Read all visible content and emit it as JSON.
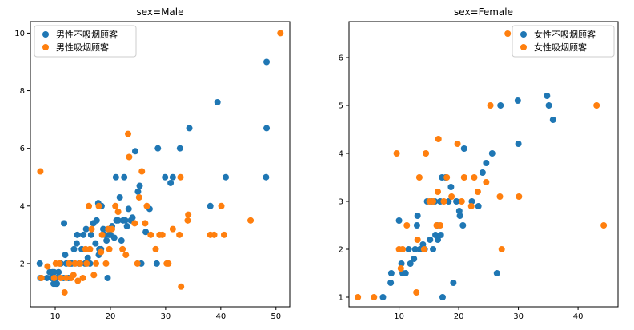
{
  "colors": {
    "non_smoker": "#1f77b4",
    "smoker": "#ff7f0e",
    "axis": "#000000",
    "background": "#ffffff"
  },
  "chart_data": [
    {
      "type": "scatter",
      "title": "sex=Male",
      "xlabel": "",
      "ylabel": "",
      "xlim": [
        5.5,
        52.5
      ],
      "ylim": [
        0.5,
        10.4
      ],
      "xticks": [
        10,
        20,
        30,
        40,
        50
      ],
      "yticks": [
        2,
        4,
        6,
        8,
        10
      ],
      "grid": false,
      "legend_position": "top-left",
      "series": [
        {
          "name": "男性不吸烟顾客",
          "color": "#1f77b4",
          "points": [
            [
              7.2,
              2
            ],
            [
              7.3,
              1.5
            ],
            [
              8.5,
              1.5
            ],
            [
              9,
              1.7
            ],
            [
              9.3,
              1.5
            ],
            [
              9.5,
              1.7
            ],
            [
              9.7,
              1.3
            ],
            [
              9.8,
              1.7
            ],
            [
              10,
              1.3
            ],
            [
              10.2,
              1.3
            ],
            [
              10.3,
              1.5
            ],
            [
              10.6,
              1.7
            ],
            [
              10.3,
              1.3
            ],
            [
              11,
              2
            ],
            [
              11.5,
              1.5
            ],
            [
              11.6,
              3.4
            ],
            [
              11.8,
              2.3
            ],
            [
              12,
              2
            ],
            [
              12.4,
              1.5
            ],
            [
              12.7,
              2
            ],
            [
              13,
              2
            ],
            [
              13.4,
              2.5
            ],
            [
              13.9,
              2.7
            ],
            [
              14,
              3
            ],
            [
              14.3,
              2
            ],
            [
              14.8,
              2.5
            ],
            [
              15.1,
              3
            ],
            [
              15.4,
              2
            ],
            [
              15.6,
              3.2
            ],
            [
              15.9,
              2.2
            ],
            [
              16.3,
              2
            ],
            [
              16.5,
              3
            ],
            [
              16.9,
              3.4
            ],
            [
              17.3,
              2.7
            ],
            [
              17.5,
              3.5
            ],
            [
              17.8,
              4.1
            ],
            [
              17.9,
              2.3
            ],
            [
              18,
              2.5
            ],
            [
              18.3,
              2.5
            ],
            [
              18.4,
              4
            ],
            [
              18.7,
              3.2
            ],
            [
              19,
              3
            ],
            [
              19.3,
              2.8
            ],
            [
              19.5,
              1.5
            ],
            [
              19.8,
              3
            ],
            [
              20,
              3
            ],
            [
              20.3,
              3.3
            ],
            [
              20.7,
              2.9
            ],
            [
              21,
              5
            ],
            [
              21.1,
              3.5
            ],
            [
              21.4,
              3.5
            ],
            [
              21.7,
              4.3
            ],
            [
              22,
              2.8
            ],
            [
              22.3,
              3.5
            ],
            [
              22.5,
              5
            ],
            [
              22.7,
              3.5
            ],
            [
              23,
              3.3
            ],
            [
              23.3,
              3.9
            ],
            [
              23.7,
              3.5
            ],
            [
              24,
              3.6
            ],
            [
              24.5,
              5.9
            ],
            [
              25,
              4.5
            ],
            [
              25.3,
              4.7
            ],
            [
              25.6,
              2
            ],
            [
              26.4,
              3.1
            ],
            [
              27.1,
              3.9
            ],
            [
              28.4,
              2
            ],
            [
              28.6,
              6
            ],
            [
              29.9,
              5
            ],
            [
              30.9,
              4.8
            ],
            [
              31.3,
              5
            ],
            [
              32.6,
              6
            ],
            [
              34.3,
              6.7
            ],
            [
              38.1,
              4
            ],
            [
              39.4,
              7.6
            ],
            [
              40.9,
              5
            ],
            [
              48.2,
              5
            ],
            [
              48.3,
              6.7
            ],
            [
              48.3,
              9
            ]
          ]
        },
        {
          "name": "男性吸烟顾客",
          "color": "#ff7f0e",
          "points": [
            [
              7.3,
              5.2
            ],
            [
              7.5,
              1.5
            ],
            [
              8.6,
              1.9
            ],
            [
              9.8,
              1.5
            ],
            [
              10.1,
              2
            ],
            [
              10.8,
              2
            ],
            [
              11,
              1.5
            ],
            [
              11.7,
              1
            ],
            [
              12,
              1.5
            ],
            [
              12.5,
              2
            ],
            [
              12.9,
              1.5
            ],
            [
              13.3,
              1.6
            ],
            [
              13.6,
              2
            ],
            [
              14.1,
              1.4
            ],
            [
              14.5,
              2
            ],
            [
              15,
              1.5
            ],
            [
              15.5,
              2.5
            ],
            [
              15.7,
              2
            ],
            [
              16.1,
              4
            ],
            [
              16.3,
              2.5
            ],
            [
              16.6,
              3.2
            ],
            [
              17,
              1.6
            ],
            [
              17.4,
              2
            ],
            [
              17.9,
              4
            ],
            [
              18.3,
              2.4
            ],
            [
              18.5,
              3
            ],
            [
              19.2,
              2
            ],
            [
              19.6,
              3.2
            ],
            [
              19.8,
              2.5
            ],
            [
              20.3,
              3.2
            ],
            [
              20.9,
              4
            ],
            [
              21.4,
              3.8
            ],
            [
              22.2,
              2.5
            ],
            [
              22.8,
              2.3
            ],
            [
              23.2,
              6.5
            ],
            [
              23.4,
              5.7
            ],
            [
              24.4,
              3.4
            ],
            [
              24.9,
              2
            ],
            [
              25.2,
              4.3
            ],
            [
              25.7,
              5.2
            ],
            [
              26.3,
              3.4
            ],
            [
              26.6,
              4
            ],
            [
              27.3,
              3
            ],
            [
              28.2,
              2.5
            ],
            [
              28.9,
              3
            ],
            [
              29.4,
              3
            ],
            [
              30.2,
              2
            ],
            [
              30.5,
              2
            ],
            [
              31.3,
              3.2
            ],
            [
              32.5,
              3
            ],
            [
              32.7,
              5
            ],
            [
              32.8,
              1.2
            ],
            [
              34,
              3.5
            ],
            [
              34.1,
              3.7
            ],
            [
              38.1,
              3
            ],
            [
              38.8,
              3
            ],
            [
              40.1,
              4
            ],
            [
              40.6,
              3
            ],
            [
              45.4,
              3.5
            ],
            [
              50.8,
              10
            ]
          ]
        }
      ]
    },
    {
      "type": "scatter",
      "title": "sex=Female",
      "xlabel": "",
      "ylabel": "",
      "xlim": [
        1.6,
        46.7
      ],
      "ylim": [
        0.8,
        6.75
      ],
      "xticks": [
        10,
        20,
        30,
        40
      ],
      "yticks": [
        1,
        2,
        3,
        4,
        5,
        6
      ],
      "grid": false,
      "legend_position": "top-right",
      "series": [
        {
          "name": "女性不吸烟顾客",
          "color": "#1f77b4",
          "points": [
            [
              7.3,
              1
            ],
            [
              8.6,
              1.3
            ],
            [
              8.7,
              1.5
            ],
            [
              10,
              2.6
            ],
            [
              10.4,
              1.7
            ],
            [
              10.6,
              1.5
            ],
            [
              11.1,
              1.5
            ],
            [
              11.6,
              2
            ],
            [
              11.9,
              1.7
            ],
            [
              12.5,
              1.8
            ],
            [
              12.7,
              2
            ],
            [
              13,
              2.5
            ],
            [
              13.1,
              2.7
            ],
            [
              13.5,
              2
            ],
            [
              13.9,
              2
            ],
            [
              14,
              2.1
            ],
            [
              14.3,
              2
            ],
            [
              14.7,
              3
            ],
            [
              15.2,
              2.2
            ],
            [
              15.4,
              3
            ],
            [
              15.7,
              2
            ],
            [
              16,
              3
            ],
            [
              16.1,
              2.3
            ],
            [
              16.4,
              2.5
            ],
            [
              16.5,
              2.2
            ],
            [
              16.9,
              3
            ],
            [
              17,
              2.3
            ],
            [
              17.2,
              3.5
            ],
            [
              17.3,
              1
            ],
            [
              17.8,
              3.5
            ],
            [
              18.3,
              3
            ],
            [
              18.7,
              3.3
            ],
            [
              19.1,
              1.3
            ],
            [
              19.6,
              3
            ],
            [
              20.1,
              2.8
            ],
            [
              20.2,
              2.7
            ],
            [
              20.7,
              2.5
            ],
            [
              20.9,
              4.1
            ],
            [
              22.2,
              3
            ],
            [
              23.3,
              2.9
            ],
            [
              24,
              3.6
            ],
            [
              24.6,
              3.8
            ],
            [
              25.6,
              4
            ],
            [
              26.4,
              1.5
            ],
            [
              27,
              5
            ],
            [
              29.9,
              5.1
            ],
            [
              30,
              4.2
            ],
            [
              34.8,
              5.2
            ],
            [
              35.1,
              5
            ],
            [
              35.8,
              4.7
            ]
          ]
        },
        {
          "name": "女性吸烟顾客",
          "color": "#ff7f0e",
          "points": [
            [
              3.1,
              1
            ],
            [
              5.8,
              1
            ],
            [
              9.6,
              4
            ],
            [
              10,
              2
            ],
            [
              10.3,
              1.6
            ],
            [
              10.6,
              2
            ],
            [
              11.3,
              2.5
            ],
            [
              12.9,
              1.1
            ],
            [
              13.1,
              2.2
            ],
            [
              13.4,
              3.5
            ],
            [
              14.2,
              2
            ],
            [
              14.5,
              4
            ],
            [
              15.1,
              3
            ],
            [
              15.7,
              3
            ],
            [
              16.3,
              2.5
            ],
            [
              16.5,
              3.2
            ],
            [
              16.6,
              4.3
            ],
            [
              16.9,
              2.5
            ],
            [
              17.5,
              3
            ],
            [
              18,
              3.5
            ],
            [
              18.8,
              3.1
            ],
            [
              19.8,
              4.2
            ],
            [
              20.5,
              3
            ],
            [
              20.9,
              3.5
            ],
            [
              22.1,
              2.9
            ],
            [
              22.6,
              3.5
            ],
            [
              23.2,
              3.2
            ],
            [
              24.6,
              3.4
            ],
            [
              25.3,
              5
            ],
            [
              26.9,
              3.1
            ],
            [
              27.2,
              2
            ],
            [
              28.2,
              6.5
            ],
            [
              30.1,
              3.1
            ],
            [
              43.1,
              5
            ],
            [
              44.3,
              2.5
            ]
          ]
        }
      ]
    }
  ]
}
